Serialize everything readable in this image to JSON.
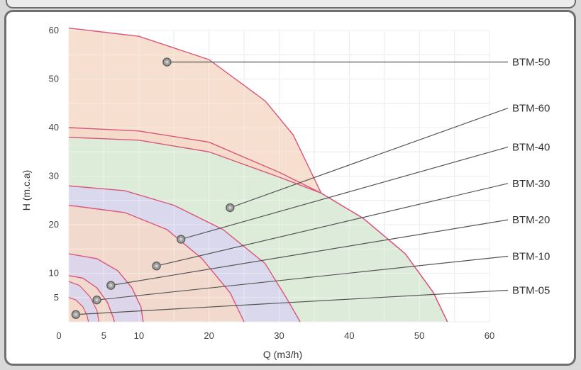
{
  "chart_data": {
    "type": "area",
    "xlabel": "Q (m3/h)",
    "ylabel": "H (m.c.a)",
    "xlim": [
      0,
      60
    ],
    "ylim": [
      0,
      60
    ],
    "x_ticks": [
      "0",
      "5",
      "10",
      "20",
      "30",
      "40",
      "50",
      "60"
    ],
    "x_tick_values": [
      0,
      5,
      10,
      20,
      30,
      40,
      50,
      60
    ],
    "y_ticks": [
      "5",
      "10",
      "20",
      "30",
      "40",
      "50",
      "60"
    ],
    "y_tick_values": [
      5,
      10,
      20,
      30,
      40,
      50,
      60
    ],
    "grid": true,
    "series": [
      {
        "name": "BTM-50",
        "fill": "#f6d9c8",
        "curve": [
          [
            0,
            60.5
          ],
          [
            10,
            58.8
          ],
          [
            20,
            54
          ],
          [
            28,
            45.5
          ],
          [
            32,
            38.5
          ],
          [
            36,
            26.5
          ]
        ],
        "marker": [
          14,
          53.5
        ]
      },
      {
        "name": "BTM-60",
        "fill": "#f6d9c8",
        "curve": [
          [
            0,
            40
          ],
          [
            10,
            39.3
          ],
          [
            20,
            37
          ],
          [
            30,
            30.8
          ],
          [
            36,
            26.5
          ],
          [
            42,
            21.3
          ],
          [
            48,
            14
          ],
          [
            52,
            6
          ],
          [
            54,
            0
          ]
        ],
        "marker": [
          23,
          23.5
        ]
      },
      {
        "name": "BTM-40",
        "fill": "#d8efdc",
        "curve": [
          [
            0,
            38
          ],
          [
            10,
            37.4
          ],
          [
            20,
            35
          ],
          [
            30,
            29.8
          ],
          [
            36,
            26.5
          ],
          [
            42,
            21.3
          ],
          [
            48,
            14
          ],
          [
            52,
            6
          ],
          [
            54,
            0
          ]
        ],
        "marker": [
          16,
          17
        ]
      },
      {
        "name": "BTM-30",
        "fill": "#d9d5ee",
        "curve": [
          [
            0,
            28
          ],
          [
            8,
            27
          ],
          [
            15,
            24
          ],
          [
            22,
            19
          ],
          [
            28,
            12
          ],
          [
            31,
            5
          ],
          [
            33,
            0
          ]
        ],
        "marker": [
          12.5,
          11.5
        ]
      },
      {
        "name": "BTM-20",
        "fill": "#f6d9c8",
        "curve": [
          [
            0,
            24
          ],
          [
            8,
            22.5
          ],
          [
            14,
            19
          ],
          [
            19,
            13
          ],
          [
            23,
            6
          ],
          [
            25,
            0
          ]
        ],
        "marker": [
          6,
          7.5
        ]
      },
      {
        "name": "BTM-10",
        "fill": "#d9d5ee",
        "curve": [
          [
            0,
            14
          ],
          [
            4,
            13
          ],
          [
            7,
            10.5
          ],
          [
            9,
            7
          ],
          [
            10.3,
            3
          ],
          [
            10.6,
            0
          ]
        ],
        "marker": [
          4,
          4.5
        ]
      },
      {
        "name": "BTM-05",
        "fill": "#f6d9c8",
        "curve": [
          [
            0,
            9.5
          ],
          [
            2,
            9
          ],
          [
            4,
            7
          ],
          [
            5.5,
            4
          ],
          [
            6.3,
            1
          ],
          [
            6.5,
            0
          ]
        ],
        "marker": [
          1,
          1.5
        ]
      }
    ],
    "inner_curves": [
      {
        "fill": "#d9d5ee",
        "curve": [
          [
            0,
            8.3
          ],
          [
            1.5,
            7.5
          ],
          [
            3,
            5.2
          ],
          [
            4,
            2.4
          ],
          [
            4.3,
            0
          ]
        ]
      },
      {
        "fill": "#f6d9c8",
        "curve": [
          [
            0,
            5
          ],
          [
            1,
            4.5
          ],
          [
            2,
            3.1
          ],
          [
            2.6,
            1.3
          ],
          [
            2.8,
            0
          ]
        ]
      }
    ],
    "labels": [
      {
        "series": "BTM-50",
        "y": 53.5
      },
      {
        "series": "BTM-60",
        "y": 44
      },
      {
        "series": "BTM-40",
        "y": 36
      },
      {
        "series": "BTM-30",
        "y": 28.5
      },
      {
        "series": "BTM-20",
        "y": 21
      },
      {
        "series": "BTM-10",
        "y": 13.5
      },
      {
        "series": "BTM-05",
        "y": 6.5
      }
    ]
  }
}
